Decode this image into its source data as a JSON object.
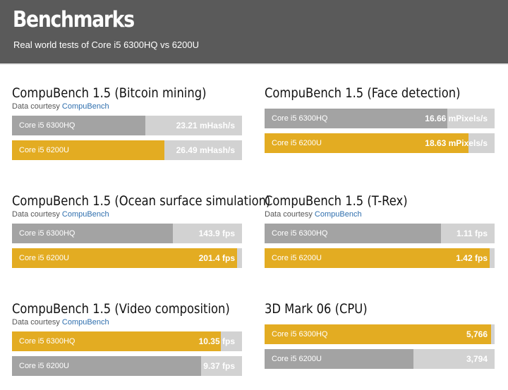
{
  "header": {
    "title": "Benchmarks",
    "subtitle": "Real world tests of Core i5 6300HQ vs 6200U"
  },
  "colors": {
    "gold": "#e3ac22",
    "gray": "#a3a3a3",
    "track": "#d2d2d2"
  },
  "chart_data": [
    {
      "type": "bar",
      "title": "CompuBench 1.5 (Bitcoin mining)",
      "source_prefix": "Data courtesy",
      "source_link": "CompuBench",
      "unit": "mHash/s",
      "max": 40,
      "bars": [
        {
          "label": "Core i5 6300HQ",
          "value": 23.21,
          "display": "23.21 mHash/s",
          "color": "gray"
        },
        {
          "label": "Core i5 6200U",
          "value": 26.49,
          "display": "26.49 mHash/s",
          "color": "gold"
        }
      ]
    },
    {
      "type": "bar",
      "title": "CompuBench 1.5 (Face detection)",
      "source_prefix": "",
      "source_link": "",
      "unit": "mPixels/s",
      "max": 21,
      "bars": [
        {
          "label": "Core i5 6300HQ",
          "value": 16.66,
          "display": "16.66 mPixels/s",
          "color": "gray"
        },
        {
          "label": "Core i5 6200U",
          "value": 18.63,
          "display": "18.63 mPixels/s",
          "color": "gold"
        }
      ]
    },
    {
      "type": "bar",
      "title": "CompuBench 1.5 (Ocean surface simulation)",
      "source_prefix": "Data courtesy",
      "source_link": "CompuBench",
      "unit": "fps",
      "max": 206,
      "bars": [
        {
          "label": "Core i5 6300HQ",
          "value": 143.9,
          "display": "143.9 fps",
          "color": "gray"
        },
        {
          "label": "Core i5 6200U",
          "value": 201.4,
          "display": "201.4 fps",
          "color": "gold"
        }
      ]
    },
    {
      "type": "bar",
      "title": "CompuBench 1.5 (T-Rex)",
      "source_prefix": "Data courtesy",
      "source_link": "CompuBench",
      "unit": "fps",
      "max": 1.45,
      "bars": [
        {
          "label": "Core i5 6300HQ",
          "value": 1.11,
          "display": "1.11 fps",
          "color": "gray"
        },
        {
          "label": "Core i5 6200U",
          "value": 1.42,
          "display": "1.42 fps",
          "color": "gold"
        }
      ]
    },
    {
      "type": "bar",
      "title": "CompuBench 1.5 (Video composition)",
      "source_prefix": "Data courtesy",
      "source_link": "CompuBench",
      "unit": "fps",
      "max": 11.4,
      "bars": [
        {
          "label": "Core i5 6300HQ",
          "value": 10.35,
          "display": "10.35 fps",
          "color": "gold"
        },
        {
          "label": "Core i5 6200U",
          "value": 9.37,
          "display": "9.37 fps",
          "color": "gray"
        }
      ]
    },
    {
      "type": "bar",
      "title": "3D Mark 06 (CPU)",
      "source_prefix": "",
      "source_link": "",
      "unit": "",
      "max": 5850,
      "bars": [
        {
          "label": "Core i5 6300HQ",
          "value": 5766,
          "display": "5,766",
          "color": "gold"
        },
        {
          "label": "Core i5 6200U",
          "value": 3794,
          "display": "3,794",
          "color": "gray"
        }
      ]
    }
  ]
}
